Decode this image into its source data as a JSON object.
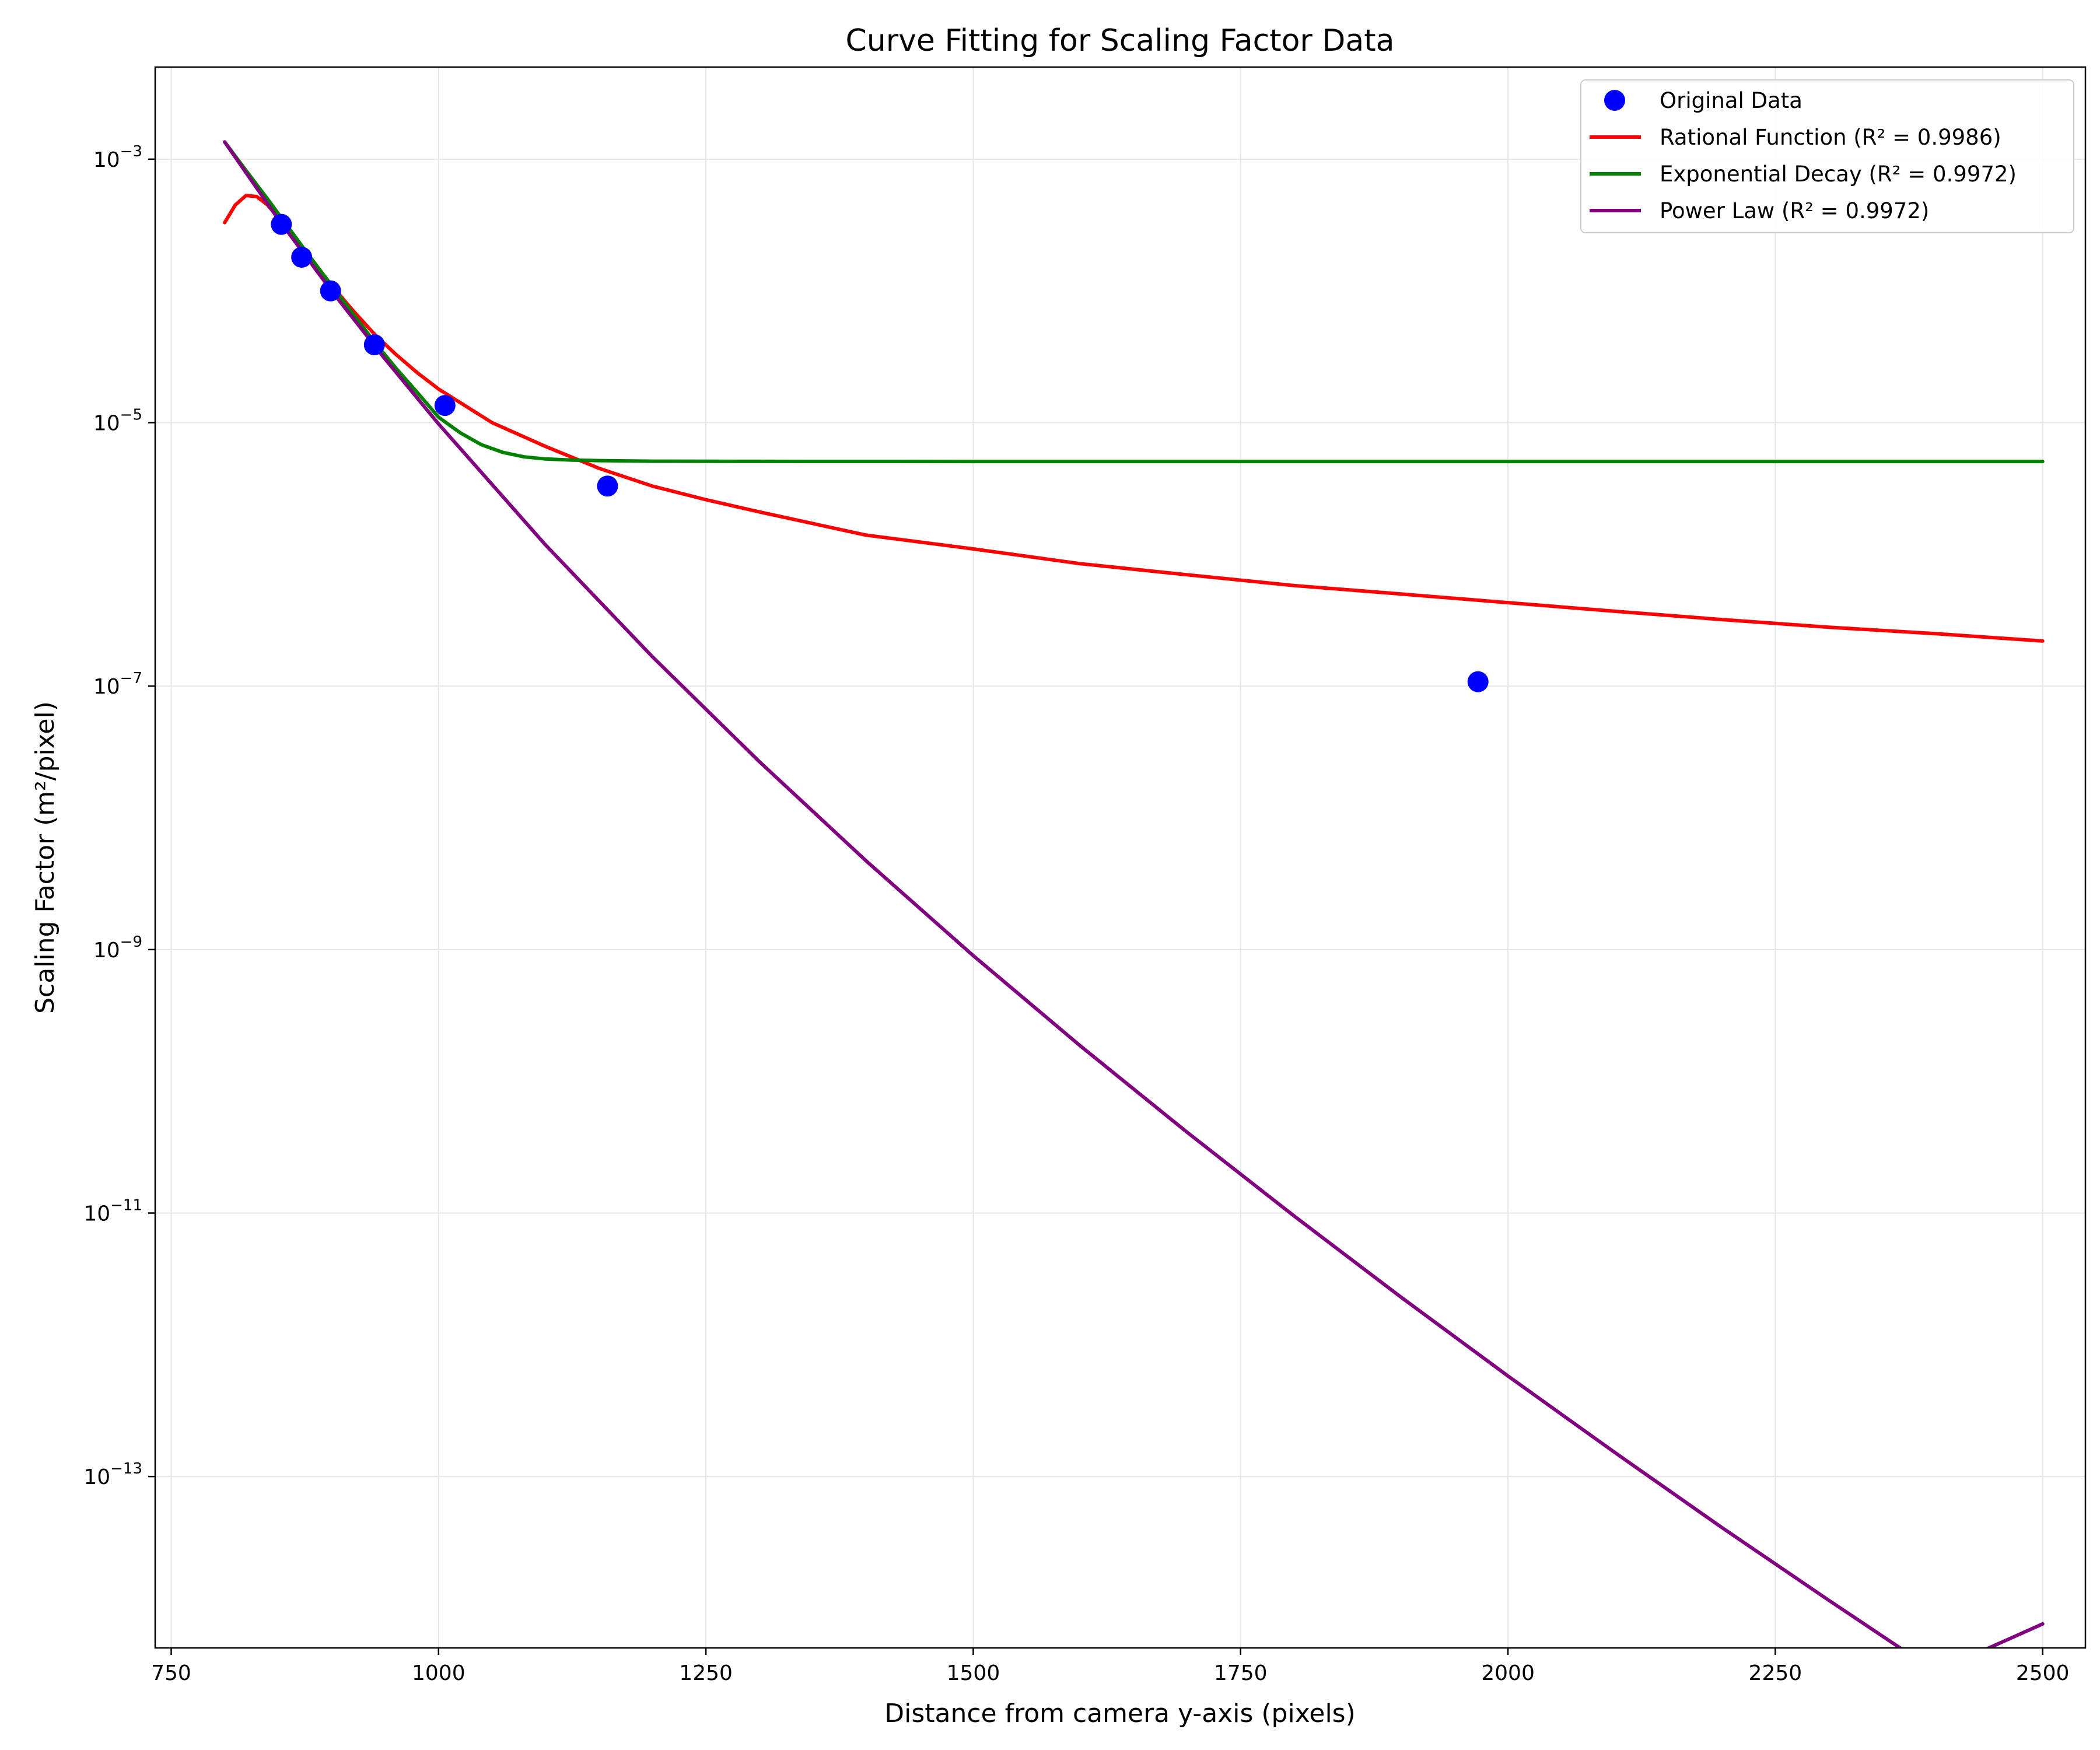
{
  "chart_data": {
    "type": "line",
    "title": "Curve Fitting for Scaling Factor Data",
    "xlabel": "Distance from camera y-axis (pixels)",
    "ylabel": "Scaling Factor (m²/pixel)",
    "x_scale": "linear",
    "y_scale": "log",
    "xlim": [
      735,
      2540
    ],
    "ylim": [
      5e-15,
      0.005
    ],
    "x_ticks": [
      750,
      1000,
      1250,
      1500,
      1750,
      2000,
      2250,
      2500
    ],
    "x_tick_labels": [
      "750",
      "1000",
      "1250",
      "1500",
      "1750",
      "2000",
      "2250",
      "2500"
    ],
    "y_ticks": [
      0.001,
      1e-05,
      1e-07,
      1e-09,
      1e-11,
      1e-13
    ],
    "y_tick_labels": [
      {
        "base": "10",
        "exp": "−3"
      },
      {
        "base": "10",
        "exp": "−5"
      },
      {
        "base": "10",
        "exp": "−7"
      },
      {
        "base": "10",
        "exp": "−9"
      },
      {
        "base": "10",
        "exp": "−11"
      },
      {
        "base": "10",
        "exp": "−13"
      }
    ],
    "grid": true,
    "legend_position": "top-right",
    "legend": [
      {
        "label": "Original Data",
        "kind": "marker",
        "color": "#0000ff"
      },
      {
        "label": "Rational Function (R² = 0.9986)",
        "kind": "line",
        "color": "#ff0000"
      },
      {
        "label": "Exponential Decay (R² = 0.9972)",
        "kind": "line",
        "color": "#008000"
      },
      {
        "label": "Power Law (R² = 0.9972)",
        "kind": "line",
        "color": "#800080"
      }
    ],
    "scatter": {
      "name": "Original Data",
      "color": "#0000ff",
      "points": [
        {
          "x": 853,
          "y": 0.00032
        },
        {
          "x": 872,
          "y": 0.00018
        },
        {
          "x": 899,
          "y": 0.0001
        },
        {
          "x": 940,
          "y": 3.9e-05
        },
        {
          "x": 1006,
          "y": 1.35e-05
        },
        {
          "x": 1158,
          "y": 3.3e-06
        },
        {
          "x": 1972,
          "y": 1.08e-07
        }
      ]
    },
    "series": [
      {
        "name": "Rational Function (R² = 0.9986)",
        "color": "#ff0000",
        "x": [
          800,
          810,
          820,
          830,
          840,
          850,
          860,
          880,
          900,
          920,
          940,
          960,
          980,
          1000,
          1050,
          1100,
          1150,
          1200,
          1250,
          1300,
          1400,
          1500,
          1600,
          1700,
          1800,
          1900,
          2000,
          2100,
          2200,
          2300,
          2400,
          2500
        ],
        "y": [
          0.00033,
          0.00045,
          0.00053,
          0.00052,
          0.00045,
          0.00036,
          0.00029,
          0.00018,
          0.00011,
          7.1e-05,
          4.7e-05,
          3.3e-05,
          2.4e-05,
          1.8e-05,
          1e-05,
          6.6e-06,
          4.5e-06,
          3.3e-06,
          2.6e-06,
          2.1e-06,
          1.4e-06,
          1.1e-06,
          8.5e-07,
          7e-07,
          5.8e-07,
          5e-07,
          4.3e-07,
          3.7e-07,
          3.2e-07,
          2.8e-07,
          2.5e-07,
          2.2e-07
        ]
      },
      {
        "name": "Exponential Decay (R² = 0.9972)",
        "color": "#008000",
        "x": [
          800,
          820,
          840,
          860,
          880,
          900,
          920,
          940,
          960,
          980,
          1000,
          1020,
          1040,
          1060,
          1080,
          1100,
          1125,
          1150,
          1200,
          1300,
          1500,
          2000,
          2500
        ],
        "y": [
          0.00135,
          0.00082,
          0.0005,
          0.0003,
          0.00018,
          0.00011,
          6.7e-05,
          4.1e-05,
          2.6e-05,
          1.7e-05,
          1.1e-05,
          8.4e-06,
          6.8e-06,
          5.95e-06,
          5.5e-06,
          5.3e-06,
          5.2e-06,
          5.15e-06,
          5.1e-06,
          5.08e-06,
          5.07e-06,
          5.07e-06,
          5.07e-06
        ]
      },
      {
        "name": "Power Law (R² = 0.9972)",
        "color": "#800080",
        "x": [
          800,
          850,
          900,
          950,
          1000,
          1100,
          1200,
          1300,
          1400,
          1500,
          1600,
          1700,
          1800,
          1900,
          2000,
          2100,
          2200,
          2300,
          2400,
          2500
        ],
        "y": [
          0.00135,
          0.000352,
          0.0001,
          3.04e-05,
          9.78e-06,
          1.18e-06,
          1.67e-07,
          2.67e-08,
          4.7e-09,
          9e-10,
          1.86e-10,
          4.1e-11,
          9.5e-12,
          2.3e-12,
          5.8e-13,
          1.52e-13,
          4.1e-14,
          1.15e-14,
          3.3e-15,
          7.6e-15
        ]
      }
    ]
  }
}
